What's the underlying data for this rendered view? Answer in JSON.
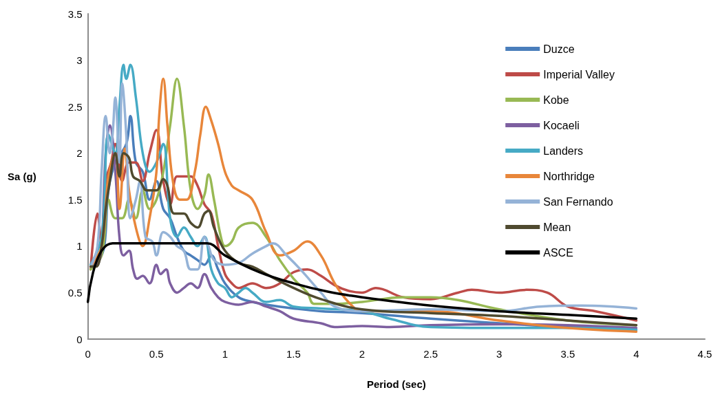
{
  "chart_data": {
    "type": "line",
    "xlabel": "Period (sec)",
    "ylabel": "Sa (g)",
    "xlim": [
      0,
      4.5
    ],
    "xticks": [
      0,
      0.5,
      1,
      1.5,
      2,
      2.5,
      3,
      3.5,
      4,
      4.5
    ],
    "ylim": [
      0,
      3.5
    ],
    "yticks": [
      0,
      0.5,
      1,
      1.5,
      2,
      2.5,
      3,
      3.5
    ],
    "grid": false,
    "legend": "right",
    "marker": "none",
    "line_style": "solid",
    "series": [
      {
        "name": "Duzce",
        "color": "#4a7ebb",
        "x": [
          0.02,
          0.08,
          0.12,
          0.15,
          0.2,
          0.24,
          0.28,
          0.31,
          0.35,
          0.4,
          0.45,
          0.5,
          0.55,
          0.6,
          0.65,
          0.7,
          0.75,
          0.8,
          0.85,
          0.9,
          0.95,
          1.0,
          1.1,
          1.2,
          1.3,
          1.5,
          1.7,
          2.0,
          2.5,
          3.0,
          3.5,
          4.0
        ],
        "values": [
          0.78,
          0.85,
          1.0,
          1.6,
          1.9,
          null,
          2.1,
          2.4,
          1.9,
          1.8,
          1.5,
          1.7,
          1.4,
          1.3,
          1.1,
          0.95,
          0.9,
          0.85,
          0.8,
          0.9,
          0.75,
          0.6,
          0.45,
          0.4,
          0.37,
          0.33,
          0.3,
          0.28,
          0.22,
          0.17,
          0.13,
          0.1
        ]
      },
      {
        "name": "Imperial Valley",
        "color": "#be4b48",
        "x": [
          0.02,
          0.07,
          0.1,
          0.13,
          0.17,
          0.2,
          0.25,
          0.3,
          0.35,
          0.4,
          0.45,
          0.5,
          0.55,
          0.6,
          0.65,
          0.7,
          0.75,
          0.8,
          0.85,
          0.9,
          0.95,
          1.0,
          1.05,
          1.1,
          1.2,
          1.3,
          1.4,
          1.5,
          1.6,
          1.7,
          1.8,
          1.9,
          2.0,
          2.1,
          2.3,
          2.5,
          2.7,
          2.8,
          3.0,
          3.2,
          3.35,
          3.5,
          3.7,
          4.0
        ],
        "values": [
          0.75,
          1.35,
          1.0,
          1.7,
          1.9,
          2.1,
          1.7,
          1.9,
          1.9,
          1.7,
          2.0,
          2.25,
          1.7,
          1.45,
          1.75,
          1.75,
          1.75,
          1.65,
          1.45,
          1.35,
          1.0,
          0.7,
          0.6,
          0.55,
          0.6,
          0.55,
          0.6,
          0.72,
          0.75,
          0.68,
          0.58,
          0.52,
          0.5,
          0.55,
          0.45,
          0.43,
          0.5,
          0.53,
          0.5,
          0.53,
          0.5,
          0.35,
          0.3,
          0.2
        ]
      },
      {
        "name": "Kobe",
        "color": "#98b954",
        "x": [
          0.02,
          0.1,
          0.15,
          0.2,
          0.25,
          0.3,
          0.35,
          0.4,
          0.45,
          0.5,
          0.55,
          0.6,
          0.65,
          0.7,
          0.75,
          0.8,
          0.85,
          0.88,
          0.92,
          0.97,
          1.0,
          1.05,
          1.1,
          1.2,
          1.3,
          1.4,
          1.5,
          1.6,
          1.65,
          1.8,
          2.0,
          2.3,
          2.5,
          2.7,
          3.0,
          3.5,
          4.0
        ],
        "values": [
          0.75,
          0.9,
          1.5,
          1.3,
          1.3,
          1.5,
          1.3,
          1.6,
          1.4,
          1.5,
          1.8,
          2.3,
          2.8,
          2.3,
          1.6,
          1.4,
          1.55,
          1.77,
          1.5,
          1.1,
          1.0,
          1.05,
          1.2,
          1.25,
          1.1,
          0.85,
          0.65,
          0.5,
          0.38,
          0.38,
          0.4,
          0.45,
          0.45,
          0.42,
          0.32,
          0.2,
          0.15
        ]
      },
      {
        "name": "Kocaeli",
        "color": "#7d5fa0",
        "x": [
          0.02,
          0.07,
          0.1,
          0.13,
          0.16,
          0.2,
          0.23,
          0.26,
          0.3,
          0.33,
          0.36,
          0.4,
          0.45,
          0.5,
          0.53,
          0.57,
          0.6,
          0.65,
          0.7,
          0.75,
          0.8,
          0.85,
          0.9,
          0.95,
          1.0,
          1.1,
          1.2,
          1.3,
          1.4,
          1.5,
          1.7,
          1.8,
          2.0,
          2.2,
          2.5,
          3.0,
          3.5,
          4.0
        ],
        "values": [
          0.78,
          0.8,
          1.0,
          2.0,
          2.3,
          1.8,
          1.1,
          0.9,
          0.95,
          0.75,
          0.65,
          0.68,
          0.6,
          0.8,
          0.7,
          0.75,
          0.6,
          0.5,
          0.55,
          0.6,
          0.55,
          0.7,
          0.55,
          0.45,
          0.4,
          0.37,
          0.4,
          0.35,
          0.3,
          0.22,
          0.17,
          0.13,
          0.14,
          0.13,
          0.15,
          0.16,
          0.15,
          0.12
        ]
      },
      {
        "name": "Landers",
        "color": "#46aac5",
        "x": [
          0.02,
          0.1,
          0.15,
          0.2,
          0.23,
          0.26,
          0.28,
          0.31,
          0.35,
          0.4,
          0.45,
          0.5,
          0.55,
          0.6,
          0.65,
          0.7,
          0.75,
          0.8,
          0.85,
          0.9,
          0.95,
          1.0,
          1.05,
          1.1,
          1.15,
          1.2,
          1.3,
          1.4,
          1.5,
          1.7,
          2.0,
          2.2,
          2.5,
          3.0,
          3.5,
          4.0
        ],
        "values": [
          0.8,
          1.1,
          2.2,
          2.0,
          2.5,
          2.95,
          2.8,
          2.95,
          2.6,
          2.0,
          1.8,
          1.9,
          2.1,
          1.3,
          1.1,
          1.2,
          1.1,
          1.0,
          1.1,
          0.75,
          0.6,
          0.55,
          0.45,
          0.5,
          0.55,
          0.5,
          0.4,
          0.42,
          0.35,
          0.33,
          0.3,
          0.22,
          0.13,
          0.12,
          0.12,
          0.1
        ]
      },
      {
        "name": "Northridge",
        "color": "#e8863a",
        "x": [
          0.02,
          0.1,
          0.15,
          0.2,
          0.23,
          0.27,
          0.3,
          0.35,
          0.4,
          0.45,
          0.5,
          0.52,
          0.55,
          0.58,
          0.62,
          0.67,
          0.72,
          0.78,
          0.82,
          0.86,
          0.9,
          0.95,
          1.0,
          1.05,
          1.1,
          1.2,
          1.3,
          1.4,
          1.5,
          1.6,
          1.7,
          1.8,
          1.9,
          2.0,
          2.2,
          2.5,
          3.0,
          3.5,
          4.0
        ],
        "values": [
          0.78,
          1.0,
          1.75,
          2.0,
          1.4,
          2.05,
          1.6,
          1.2,
          1.0,
          1.3,
          1.8,
          2.4,
          2.8,
          2.3,
          1.7,
          1.5,
          1.5,
          1.8,
          2.2,
          2.5,
          2.35,
          2.1,
          1.8,
          1.65,
          1.6,
          1.5,
          1.15,
          0.9,
          0.95,
          1.05,
          0.9,
          0.6,
          0.4,
          0.3,
          0.3,
          0.3,
          0.2,
          0.12,
          0.08
        ]
      },
      {
        "name": "San Fernando",
        "color": "#95b3d7",
        "x": [
          0.02,
          0.07,
          0.1,
          0.13,
          0.16,
          0.18,
          0.2,
          0.23,
          0.25,
          0.28,
          0.31,
          0.35,
          0.38,
          0.42,
          0.47,
          0.5,
          0.55,
          0.6,
          0.65,
          0.7,
          0.75,
          0.8,
          0.85,
          0.88,
          0.92,
          1.0,
          1.1,
          1.2,
          1.3,
          1.35,
          1.45,
          1.55,
          1.7,
          1.8,
          2.0,
          2.5,
          3.0,
          3.3,
          3.6,
          4.0
        ],
        "values": [
          0.78,
          1.0,
          1.8,
          2.4,
          2.0,
          2.2,
          2.6,
          1.9,
          2.75,
          2.2,
          1.3,
          1.5,
          1.7,
          1.1,
          1.05,
          0.9,
          1.15,
          1.1,
          1.0,
          0.95,
          0.75,
          0.75,
          1.1,
          1.0,
          0.85,
          0.8,
          0.82,
          0.92,
          1.0,
          1.03,
          0.9,
          0.75,
          0.5,
          0.35,
          0.3,
          0.32,
          0.3,
          0.35,
          0.36,
          0.33
        ]
      },
      {
        "name": "Mean",
        "color": "#4f4a2f",
        "x": [
          0.02,
          0.06,
          0.1,
          0.13,
          0.16,
          0.2,
          0.23,
          0.26,
          0.3,
          0.33,
          0.38,
          0.43,
          0.5,
          0.55,
          0.58,
          0.63,
          0.7,
          0.75,
          0.8,
          0.85,
          0.88,
          0.92,
          1.0,
          1.1,
          1.2,
          1.3,
          1.5,
          1.7,
          2.0,
          2.5,
          3.0,
          3.5,
          4.0
        ],
        "values": [
          0.78,
          0.78,
          1.0,
          1.4,
          1.7,
          2.0,
          1.75,
          2.0,
          1.95,
          1.75,
          1.7,
          1.6,
          1.6,
          1.72,
          1.65,
          1.35,
          1.35,
          1.25,
          1.2,
          1.35,
          1.38,
          1.2,
          0.95,
          0.82,
          0.78,
          0.7,
          0.55,
          0.43,
          0.32,
          0.28,
          0.25,
          0.2,
          0.15
        ]
      },
      {
        "name": "ASCE",
        "color": "#000000",
        "x": [
          0,
          0.18,
          0.87,
          1.0,
          1.25,
          1.5,
          1.75,
          2.0,
          2.5,
          3.0,
          3.5,
          4.0
        ],
        "values": [
          0.4,
          1.03,
          1.03,
          0.9,
          0.72,
          0.6,
          0.51,
          0.45,
          0.36,
          0.3,
          0.26,
          0.22
        ]
      }
    ]
  }
}
